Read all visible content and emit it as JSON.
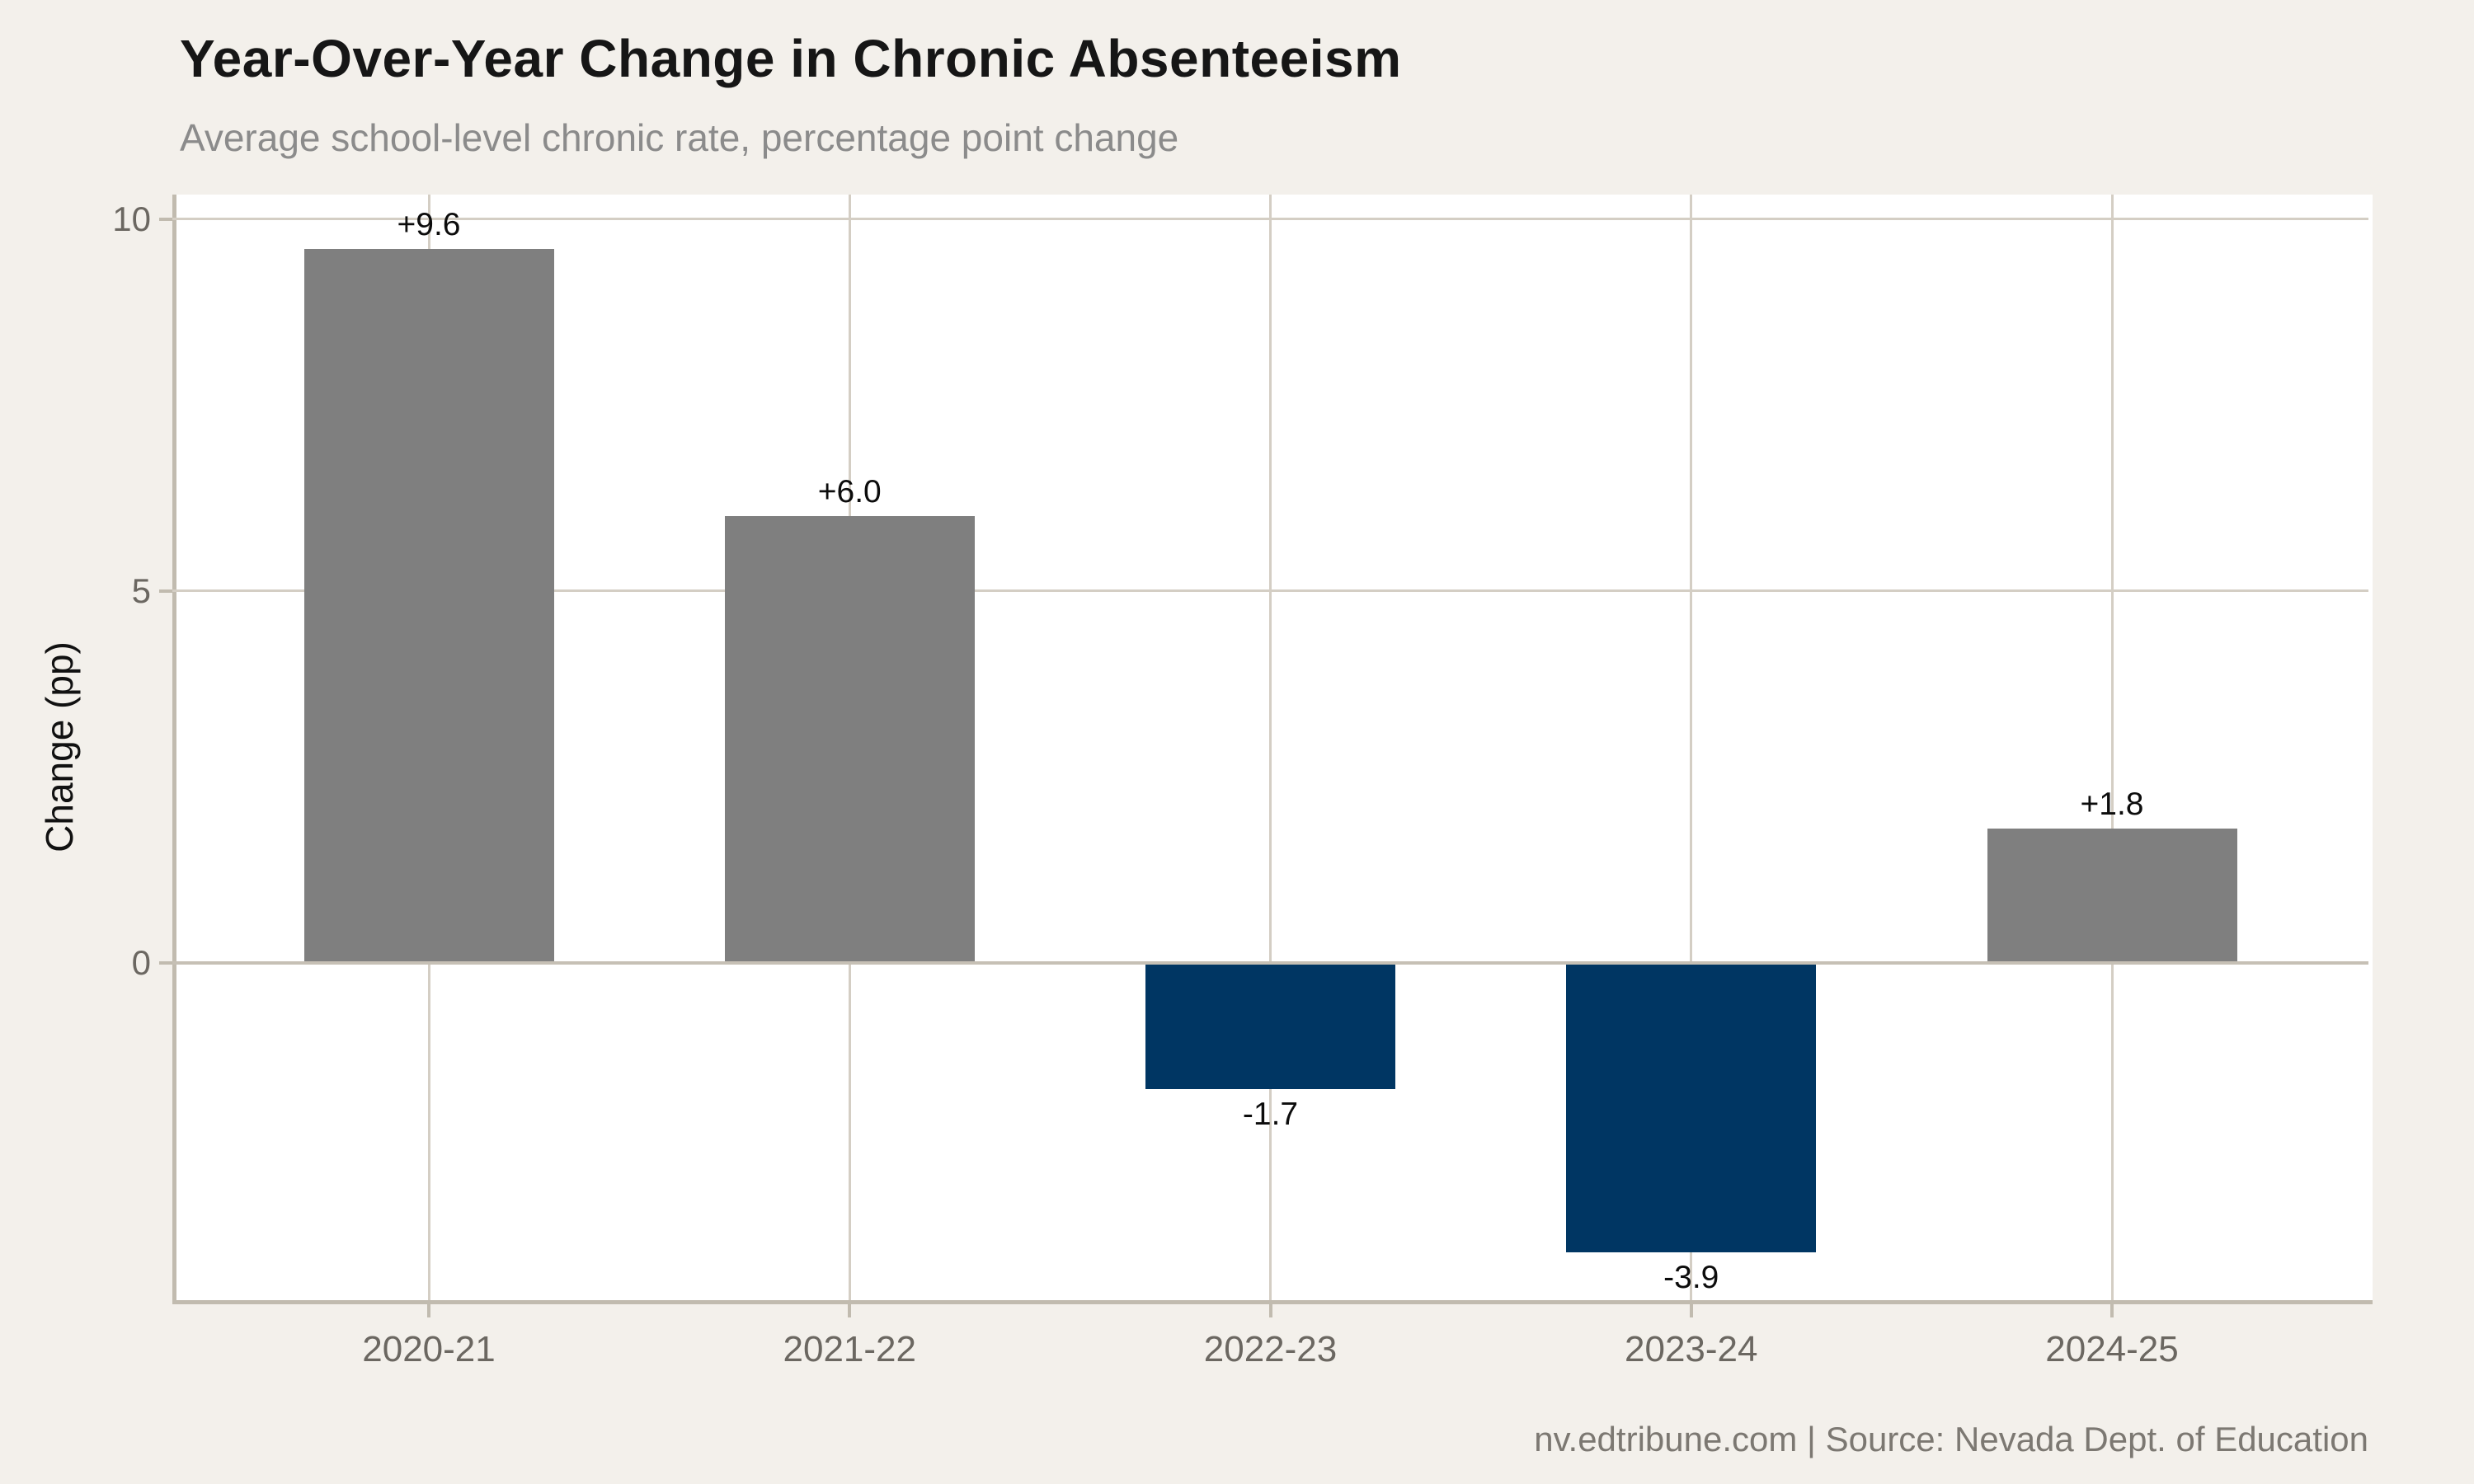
{
  "header": {
    "title": "Year-Over-Year Change in Chronic Absenteeism",
    "subtitle": "Average school-level chronic rate, percentage point change"
  },
  "footer": {
    "credit": "nv.edtribune.com | Source: Nevada Dept. of Education"
  },
  "colors": {
    "background": "#f3f0eb",
    "plot_background": "#ffffff",
    "positive_bar": "#7f7f7f",
    "negative_bar": "#003663",
    "gridline": "#d4cec4",
    "axis_spine": "#c1bbaf",
    "tick_label": "#6b6761",
    "title_text": "#161616",
    "subtitle_text": "#8b8b8b",
    "footer_text": "#7c7872"
  },
  "chart_data": {
    "type": "bar",
    "title": "Year-Over-Year Change in Chronic Absenteeism",
    "subtitle": "Average school-level chronic rate, percentage point change",
    "categories": [
      "2020-21",
      "2021-22",
      "2022-23",
      "2023-24",
      "2024-25"
    ],
    "values": [
      9.6,
      6.0,
      -1.7,
      -3.9,
      1.8
    ],
    "value_labels": [
      "+9.6",
      "+6.0",
      "-1.7",
      "-3.9",
      "+1.8"
    ],
    "xlabel": "",
    "ylabel": "Change (pp)",
    "yticks": [
      10,
      5,
      0
    ],
    "ytick_labels": [
      "10",
      "5",
      "0"
    ],
    "ylim": [
      -4.54,
      10.33
    ],
    "grid": true,
    "legend_position": "none",
    "bar_color_rule": "positive values gray (#7f7f7f), negative values navy (#003663)"
  }
}
